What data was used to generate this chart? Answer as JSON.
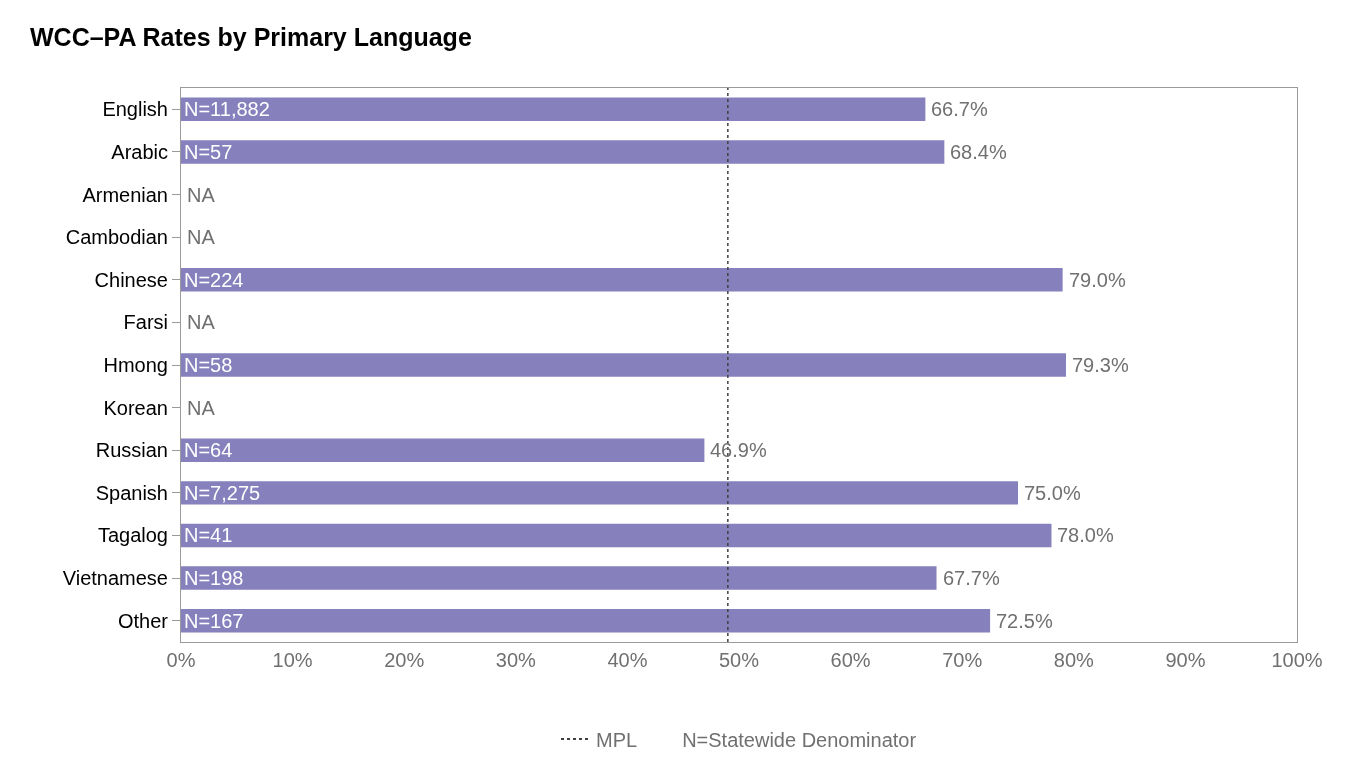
{
  "chart_data": {
    "type": "bar",
    "orientation": "horizontal",
    "title": "WCC–PA Rates by Primary Language",
    "categories": [
      "English",
      "Arabic",
      "Armenian",
      "Cambodian",
      "Chinese",
      "Farsi",
      "Hmong",
      "Korean",
      "Russian",
      "Spanish",
      "Tagalog",
      "Vietnamese",
      "Other"
    ],
    "values": [
      66.7,
      68.4,
      null,
      null,
      79.0,
      null,
      79.3,
      null,
      46.9,
      75.0,
      78.0,
      67.7,
      72.5
    ],
    "value_labels": [
      "66.7%",
      "68.4%",
      "NA",
      "NA",
      "79.0%",
      "NA",
      "79.3%",
      "NA",
      "46.9%",
      "75.0%",
      "78.0%",
      "67.7%",
      "72.5%"
    ],
    "color": "#8680bd",
    "xlim": [
      0,
      100
    ],
    "xticks": [
      {
        "value": 0,
        "label": "0%"
      },
      {
        "value": 10,
        "label": "10%"
      },
      {
        "value": 20,
        "label": "20%"
      },
      {
        "value": 30,
        "label": "30%"
      },
      {
        "value": 40,
        "label": "40%"
      },
      {
        "value": 50,
        "label": "50%"
      },
      {
        "value": 60,
        "label": "60%"
      },
      {
        "value": 70,
        "label": "70%"
      },
      {
        "value": 80,
        "label": "80%"
      },
      {
        "value": 90,
        "label": "90%"
      },
      {
        "value": 100,
        "label": "100%"
      }
    ],
    "ref_lines": [
      {
        "axis": "x",
        "value": 49,
        "label": "MPL",
        "line_style": "dotted",
        "color": "#404040"
      }
    ],
    "annotations": [
      "N=11,882",
      "N=57",
      "N=224",
      "N=58",
      "N=64",
      "N=7,275",
      "N=41",
      "N=198",
      "N=167",
      "N=Statewide Denominator"
    ],
    "legend": "bottom"
  }
}
